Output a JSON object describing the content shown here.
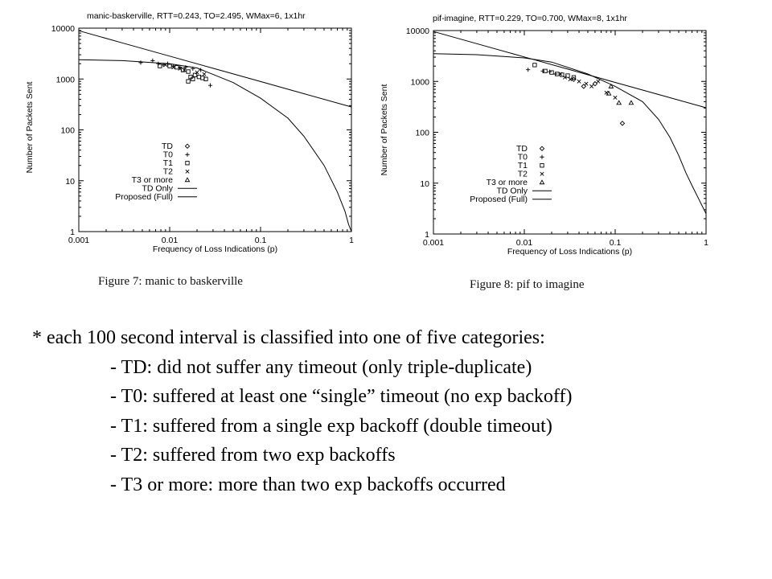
{
  "chart_data": [
    {
      "type": "scatter",
      "title": "manic-baskerville, RTT=0.243, TO=2.495, WMax=6, 1x1hr",
      "xlabel": "Frequency of Loss Indications (p)",
      "ylabel": "Number of Packets Sent",
      "xscale": "log",
      "yscale": "log",
      "xlim": [
        0.001,
        1
      ],
      "ylim": [
        1,
        10000
      ],
      "xticks": [
        "0.001",
        "0.01",
        "0.1",
        "1"
      ],
      "yticks": [
        "1",
        "10",
        "100",
        "1000",
        "10000"
      ],
      "grid": false,
      "legend_position": "bottom-left",
      "series": [
        {
          "name": "TD",
          "marker": "diamond",
          "points": []
        },
        {
          "name": "T0",
          "marker": "plus",
          "points": [
            [
              0.0048,
              2100
            ],
            [
              0.0065,
              2300
            ],
            [
              0.0075,
              2000
            ],
            [
              0.0085,
              1900
            ],
            [
              0.0095,
              2000
            ],
            [
              0.011,
              1800
            ],
            [
              0.013,
              1700
            ],
            [
              0.015,
              1700
            ],
            [
              0.018,
              1600
            ],
            [
              0.022,
              1500
            ],
            [
              0.028,
              750
            ]
          ]
        },
        {
          "name": "T1",
          "marker": "square",
          "points": [
            [
              0.0078,
              1800
            ],
            [
              0.01,
              1800
            ],
            [
              0.012,
              1700
            ],
            [
              0.014,
              1500
            ],
            [
              0.016,
              1400
            ],
            [
              0.017,
              1100
            ],
            [
              0.018,
              1000
            ],
            [
              0.019,
              1200
            ],
            [
              0.021,
              1100
            ],
            [
              0.023,
              1050
            ],
            [
              0.025,
              1000
            ],
            [
              0.016,
              900
            ]
          ]
        },
        {
          "name": "T2",
          "marker": "cross",
          "points": [
            [
              0.009,
              1900
            ],
            [
              0.011,
              1700
            ],
            [
              0.013,
              1600
            ],
            [
              0.0145,
              1500
            ],
            [
              0.02,
              1350
            ],
            [
              0.024,
              1250
            ]
          ]
        },
        {
          "name": "T3 or more",
          "marker": "triangle",
          "points": []
        },
        {
          "name": "TD Only",
          "line": "dashed",
          "points": [
            [
              0.001,
              8911
            ],
            [
              0.003,
              5145
            ],
            [
              0.01,
              2818
            ],
            [
              0.03,
              1627
            ],
            [
              0.1,
              891
            ],
            [
              0.3,
              515
            ],
            [
              1,
              282
            ]
          ]
        },
        {
          "name": "Proposed (Full)",
          "line": "solid",
          "points": [
            [
              0.001,
              2390
            ],
            [
              0.003,
              2300
            ],
            [
              0.01,
              2000
            ],
            [
              0.02,
              1650
            ],
            [
              0.05,
              850
            ],
            [
              0.1,
              420
            ],
            [
              0.2,
              170
            ],
            [
              0.3,
              75
            ],
            [
              0.5,
              20
            ],
            [
              0.7,
              6
            ],
            [
              0.85,
              2.5
            ],
            [
              0.93,
              1.4
            ],
            [
              1,
              1
            ]
          ]
        }
      ]
    },
    {
      "type": "scatter",
      "title": "pif-imagine, RTT=0.229, TO=0.700, WMax=8, 1x1hr",
      "xlabel": "Frequency of Loss Indications (p)",
      "ylabel": "Number of Packets Sent",
      "xscale": "log",
      "yscale": "log",
      "xlim": [
        0.001,
        1
      ],
      "ylim": [
        1,
        10000
      ],
      "xticks": [
        "0.001",
        "0.01",
        "0.1",
        "1"
      ],
      "yticks": [
        "1",
        "10",
        "100",
        "1000",
        "10000"
      ],
      "grid": false,
      "legend_position": "bottom-left",
      "series": [
        {
          "name": "TD",
          "marker": "diamond",
          "points": [
            [
              0.06,
              900
            ],
            [
              0.045,
              800
            ],
            [
              0.035,
              1100
            ],
            [
              0.12,
              150
            ]
          ]
        },
        {
          "name": "T0",
          "marker": "plus",
          "points": [
            [
              0.011,
              1700
            ],
            [
              0.016,
              1600
            ],
            [
              0.019,
              1550
            ],
            [
              0.022,
              1400
            ]
          ]
        },
        {
          "name": "T1",
          "marker": "square",
          "points": [
            [
              0.013,
              2100
            ],
            [
              0.017,
              1600
            ],
            [
              0.02,
              1500
            ],
            [
              0.023,
              1400
            ],
            [
              0.026,
              1350
            ],
            [
              0.03,
              1300
            ],
            [
              0.035,
              1200
            ]
          ]
        },
        {
          "name": "T2",
          "marker": "cross",
          "points": [
            [
              0.025,
              1400
            ],
            [
              0.028,
              1200
            ],
            [
              0.032,
              1100
            ],
            [
              0.04,
              1000
            ],
            [
              0.048,
              900
            ],
            [
              0.055,
              800
            ],
            [
              0.065,
              1000
            ],
            [
              0.08,
              600
            ],
            [
              0.1,
              480
            ]
          ]
        },
        {
          "name": "T3 or more",
          "marker": "triangle",
          "points": [
            [
              0.09,
              800
            ],
            [
              0.11,
              380
            ],
            [
              0.15,
              380
            ],
            [
              0.085,
              580
            ]
          ]
        },
        {
          "name": "TD Only",
          "line": "dashed",
          "points": [
            [
              0.001,
              9572
            ],
            [
              0.003,
              5527
            ],
            [
              0.01,
              3027
            ],
            [
              0.03,
              1748
            ],
            [
              0.1,
              957
            ],
            [
              0.3,
              553
            ],
            [
              1,
              303
            ]
          ]
        },
        {
          "name": "Proposed (Full)",
          "line": "solid",
          "points": [
            [
              0.001,
              3500
            ],
            [
              0.003,
              3350
            ],
            [
              0.01,
              2900
            ],
            [
              0.02,
              2400
            ],
            [
              0.05,
              1400
            ],
            [
              0.1,
              800
            ],
            [
              0.2,
              400
            ],
            [
              0.3,
              180
            ],
            [
              0.4,
              80
            ],
            [
              0.5,
              35
            ],
            [
              0.6,
              16
            ],
            [
              0.7,
              9
            ],
            [
              0.85,
              4.5
            ],
            [
              1,
              2.5
            ]
          ]
        }
      ]
    }
  ],
  "figure_captions": [
    "Figure 7: manic to baskerville",
    "Figure 8: pif to imagine"
  ],
  "notes": {
    "heading": "* each 100 second interval is classified into one of five categories:",
    "items": [
      "- TD: did not suffer any timeout (only triple-duplicate)",
      "- T0: suffered at least one “single” timeout (no exp backoff)",
      "- T1: suffered from a single exp backoff (double timeout)",
      "- T2: suffered from two exp backoffs",
      "- T3 or more: more than two exp backoffs occurred"
    ]
  }
}
